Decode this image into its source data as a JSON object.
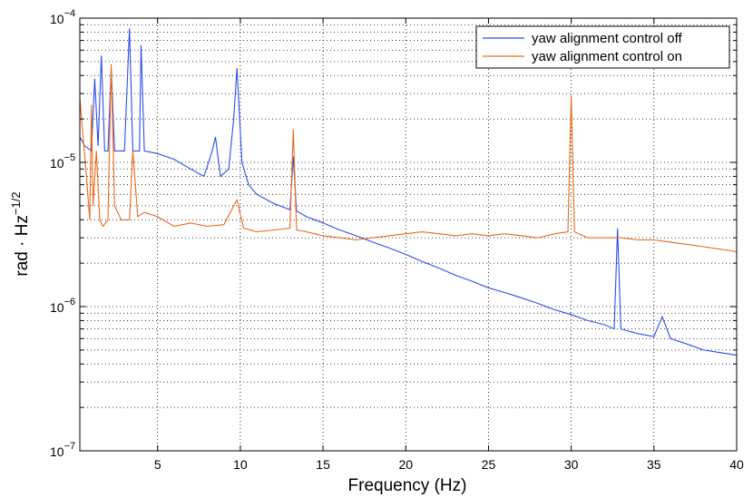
{
  "chart_data": {
    "type": "line",
    "title": "",
    "xlabel": "Frequency (Hz)",
    "ylabel": "rad · Hz",
    "ylabel_exponent": "−1/2",
    "xlim": [
      0.3,
      40
    ],
    "ylim": [
      1e-07,
      0.0001
    ],
    "yscale": "log",
    "grid": true,
    "legend_position": "top-right",
    "x_ticks": [
      5,
      10,
      15,
      20,
      25,
      30,
      35,
      40
    ],
    "x_tick_labels": [
      "5",
      "10",
      "15",
      "20",
      "25",
      "30",
      "35",
      "40"
    ],
    "y_ticks": [
      {
        "value": 1e-07,
        "base": "10",
        "exp": "−7"
      },
      {
        "value": 1e-06,
        "base": "10",
        "exp": "−6"
      },
      {
        "value": 1e-05,
        "base": "10",
        "exp": "−5"
      },
      {
        "value": 0.0001,
        "base": "10",
        "exp": "−4"
      }
    ],
    "series": [
      {
        "name": "yaw alignment control off",
        "color": "#2a4ee8",
        "points": [
          [
            0.3,
            1.5e-05
          ],
          [
            0.6,
            1.3e-05
          ],
          [
            1.0,
            1.2e-05
          ],
          [
            1.2,
            3.8e-05
          ],
          [
            1.4,
            1.3e-05
          ],
          [
            1.6,
            5.5e-05
          ],
          [
            1.8,
            1.2e-05
          ],
          [
            2.0,
            1.2e-05
          ],
          [
            2.2,
            4.5e-05
          ],
          [
            2.4,
            1.2e-05
          ],
          [
            3.0,
            1.2e-05
          ],
          [
            3.3,
            8.5e-05
          ],
          [
            3.5,
            1.2e-05
          ],
          [
            3.9,
            1.2e-05
          ],
          [
            4.0,
            6.5e-05
          ],
          [
            4.2,
            1.2e-05
          ],
          [
            5.0,
            1.15e-05
          ],
          [
            6.0,
            1.05e-05
          ],
          [
            7.0,
            9e-06
          ],
          [
            7.8,
            8e-06
          ],
          [
            8.3,
            1.2e-05
          ],
          [
            8.5,
            1.5e-05
          ],
          [
            8.8,
            8e-06
          ],
          [
            9.3,
            9e-06
          ],
          [
            9.6,
            2e-05
          ],
          [
            9.8,
            4.5e-05
          ],
          [
            10.1,
            1e-05
          ],
          [
            10.5,
            7e-06
          ],
          [
            11.0,
            6e-06
          ],
          [
            12.0,
            5.2e-06
          ],
          [
            13.0,
            4.7e-06
          ],
          [
            13.2,
            1.1e-05
          ],
          [
            13.4,
            4.6e-06
          ],
          [
            14.0,
            4.2e-06
          ],
          [
            15.0,
            3.8e-06
          ],
          [
            16.0,
            3.4e-06
          ],
          [
            17.0,
            3.1e-06
          ],
          [
            18.0,
            2.8e-06
          ],
          [
            19.0,
            2.55e-06
          ],
          [
            20.0,
            2.3e-06
          ],
          [
            21.0,
            2.05e-06
          ],
          [
            22.0,
            1.85e-06
          ],
          [
            23.0,
            1.65e-06
          ],
          [
            24.0,
            1.5e-06
          ],
          [
            25.0,
            1.35e-06
          ],
          [
            26.0,
            1.25e-06
          ],
          [
            27.0,
            1.15e-06
          ],
          [
            28.0,
            1.05e-06
          ],
          [
            29.0,
            9.5e-07
          ],
          [
            30.0,
            8.8e-07
          ],
          [
            31.0,
            8e-07
          ],
          [
            32.0,
            7.5e-07
          ],
          [
            32.6,
            7e-07
          ],
          [
            32.8,
            3.5e-06
          ],
          [
            33.0,
            7e-07
          ],
          [
            34.0,
            6.5e-07
          ],
          [
            35.0,
            6.2e-07
          ],
          [
            35.5,
            8.5e-07
          ],
          [
            36.0,
            6e-07
          ],
          [
            37.0,
            5.5e-07
          ],
          [
            38.0,
            5e-07
          ],
          [
            39.0,
            4.8e-07
          ],
          [
            40.0,
            4.6e-07
          ]
        ]
      },
      {
        "name": "yaw alignment control on",
        "color": "#ea6a1c",
        "points": [
          [
            0.3,
            2.8e-05
          ],
          [
            0.5,
            1.5e-05
          ],
          [
            0.7,
            8e-06
          ],
          [
            0.9,
            4e-06
          ],
          [
            1.0,
            2.5e-05
          ],
          [
            1.1,
            5e-06
          ],
          [
            1.3,
            1.2e-05
          ],
          [
            1.5,
            4e-06
          ],
          [
            1.7,
            3.6e-06
          ],
          [
            2.0,
            4e-06
          ],
          [
            2.2,
            4.8e-05
          ],
          [
            2.4,
            5e-06
          ],
          [
            2.8,
            4e-06
          ],
          [
            3.3,
            4e-06
          ],
          [
            3.5,
            1.2e-05
          ],
          [
            3.8,
            4.2e-06
          ],
          [
            4.2,
            4.5e-06
          ],
          [
            5.0,
            4.2e-06
          ],
          [
            6.0,
            3.6e-06
          ],
          [
            7.0,
            3.8e-06
          ],
          [
            8.0,
            3.6e-06
          ],
          [
            9.0,
            3.7e-06
          ],
          [
            9.8,
            5.5e-06
          ],
          [
            10.2,
            3.5e-06
          ],
          [
            11.0,
            3.3e-06
          ],
          [
            12.0,
            3.4e-06
          ],
          [
            13.0,
            3.5e-06
          ],
          [
            13.2,
            1.7e-05
          ],
          [
            13.4,
            3.4e-06
          ],
          [
            14.0,
            3.3e-06
          ],
          [
            15.0,
            3.1e-06
          ],
          [
            16.0,
            3e-06
          ],
          [
            17.0,
            2.9e-06
          ],
          [
            18.0,
            3e-06
          ],
          [
            19.0,
            3.1e-06
          ],
          [
            20.0,
            3.2e-06
          ],
          [
            21.0,
            3.3e-06
          ],
          [
            22.0,
            3.2e-06
          ],
          [
            23.0,
            3.1e-06
          ],
          [
            24.0,
            3.2e-06
          ],
          [
            25.0,
            3.1e-06
          ],
          [
            26.0,
            3.2e-06
          ],
          [
            27.0,
            3.1e-06
          ],
          [
            28.0,
            3e-06
          ],
          [
            29.0,
            3.2e-06
          ],
          [
            29.8,
            3.3e-06
          ],
          [
            30.0,
            2.9e-05
          ],
          [
            30.2,
            3.3e-06
          ],
          [
            31.0,
            3e-06
          ],
          [
            32.0,
            3e-06
          ],
          [
            33.0,
            3e-06
          ],
          [
            34.0,
            2.9e-06
          ],
          [
            35.0,
            2.9e-06
          ],
          [
            36.0,
            2.8e-06
          ],
          [
            37.0,
            2.7e-06
          ],
          [
            38.0,
            2.6e-06
          ],
          [
            39.0,
            2.5e-06
          ],
          [
            40.0,
            2.4e-06
          ]
        ]
      }
    ]
  }
}
